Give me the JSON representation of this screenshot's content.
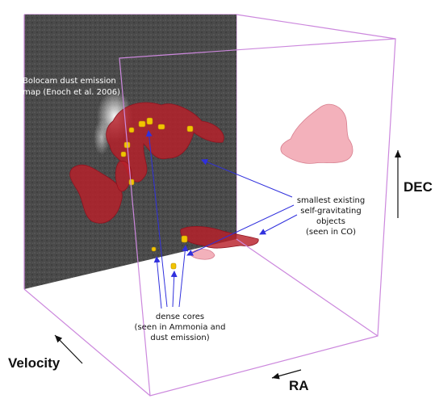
{
  "map_caption": [
    "Bolocam dust emission",
    "map (Enoch et al. 2006)"
  ],
  "objects_label": [
    "smallest existing",
    "self-gravitating",
    "objects",
    "(seen in CO)"
  ],
  "cores_label": [
    "dense cores",
    "(seen in Ammonia and",
    "dust emission)"
  ],
  "axes": {
    "dec": "DEC",
    "ra": "RA",
    "velocity": "Velocity"
  },
  "colors": {
    "box_edges": "#cc88dd",
    "map_background": "#4a4a4a",
    "dust_glow": "#e8e8e8",
    "co_cloud_red": "#b8202a",
    "co_cloud_pink": "#f2a8b4",
    "dense_cores": "#f2c400",
    "pointer_arrows": "#3030dd",
    "axis_arrows": "#111111"
  }
}
